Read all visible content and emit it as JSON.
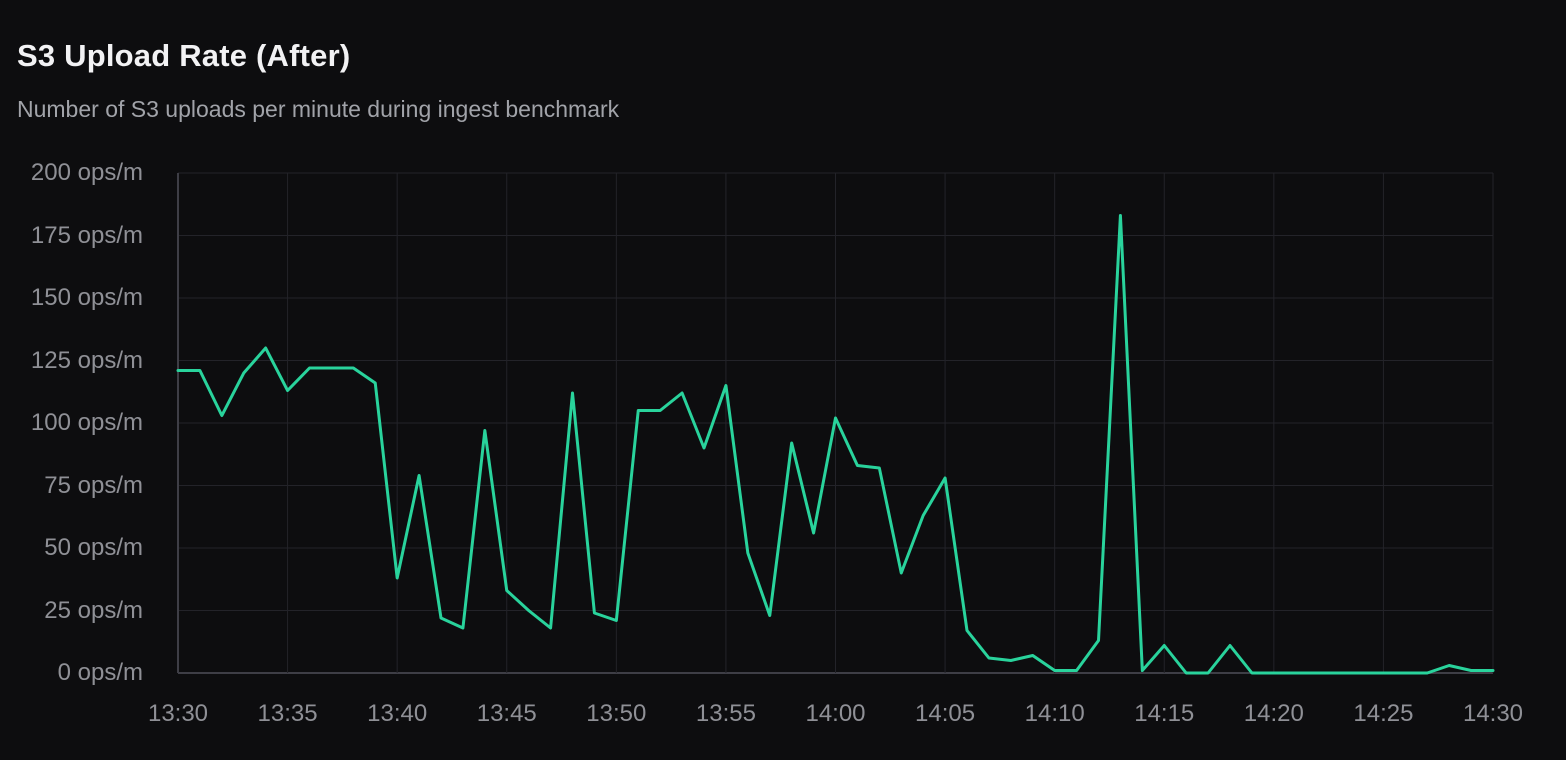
{
  "header": {
    "title": "S3 Upload Rate (After)",
    "subtitle": "Number of S3 uploads per minute during ingest benchmark"
  },
  "colors": {
    "background": "#0d0d0f",
    "line": "#29d39c",
    "grid": "#232329",
    "axis": "#3e3e46",
    "tick_text": "#8f9096",
    "title_text": "#f2f2f4",
    "subtitle_text": "#a1a3a9"
  },
  "chart_data": {
    "type": "line",
    "title": "S3 Upload Rate (After)",
    "subtitle": "Number of S3 uploads per minute during ingest benchmark",
    "xlabel": "",
    "ylabel": "",
    "unit": "ops/m",
    "ylim": [
      0,
      200
    ],
    "grid": true,
    "legend": "none",
    "y_ticks": [
      0,
      25,
      50,
      75,
      100,
      125,
      150,
      175,
      200
    ],
    "y_tick_labels": [
      "0 ops/m",
      "25 ops/m",
      "50 ops/m",
      "75 ops/m",
      "100 ops/m",
      "125 ops/m",
      "150 ops/m",
      "175 ops/m",
      "200 ops/m"
    ],
    "x_tick_labels": [
      "13:30",
      "13:35",
      "13:40",
      "13:45",
      "13:50",
      "13:55",
      "14:00",
      "14:05",
      "14:10",
      "14:15",
      "14:20",
      "14:25",
      "14:30"
    ],
    "x": [
      "13:30",
      "13:31",
      "13:32",
      "13:33",
      "13:34",
      "13:35",
      "13:36",
      "13:37",
      "13:38",
      "13:39",
      "13:40",
      "13:41",
      "13:42",
      "13:43",
      "13:44",
      "13:45",
      "13:46",
      "13:47",
      "13:48",
      "13:49",
      "13:50",
      "13:51",
      "13:52",
      "13:53",
      "13:54",
      "13:55",
      "13:56",
      "13:57",
      "13:58",
      "13:59",
      "14:00",
      "14:01",
      "14:02",
      "14:03",
      "14:04",
      "14:05",
      "14:06",
      "14:07",
      "14:08",
      "14:09",
      "14:10",
      "14:11",
      "14:12",
      "14:13",
      "14:14",
      "14:15",
      "14:16",
      "14:17",
      "14:18",
      "14:19",
      "14:20",
      "14:21",
      "14:22",
      "14:23",
      "14:24",
      "14:25",
      "14:26",
      "14:27",
      "14:28",
      "14:29",
      "14:30"
    ],
    "values": [
      121,
      121,
      103,
      120,
      130,
      113,
      122,
      122,
      122,
      116,
      38,
      79,
      22,
      18,
      97,
      33,
      25,
      18,
      112,
      24,
      21,
      105,
      105,
      112,
      90,
      115,
      48,
      23,
      92,
      56,
      102,
      83,
      82,
      40,
      63,
      78,
      17,
      6,
      5,
      7,
      1,
      1,
      13,
      183,
      1,
      11,
      0,
      0,
      11,
      0,
      0,
      0,
      0,
      0,
      0,
      0,
      0,
      0,
      3,
      1,
      1
    ]
  }
}
